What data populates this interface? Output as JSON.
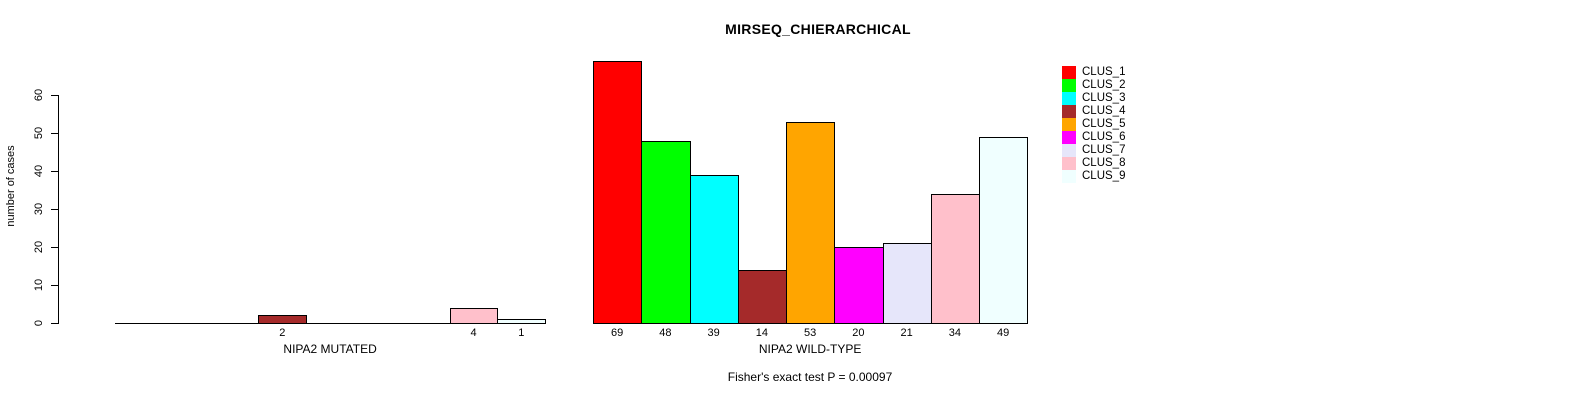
{
  "chart_data": {
    "type": "bar",
    "title": "MIRSEQ_CHIERARCHICAL",
    "ylabel": "number of cases",
    "xlabel": "",
    "yticks": [
      0,
      10,
      20,
      30,
      40,
      50,
      60
    ],
    "ylim": [
      0,
      69
    ],
    "grid": false,
    "series_labels": [
      "CLUS_1",
      "CLUS_2",
      "CLUS_3",
      "CLUS_4",
      "CLUS_5",
      "CLUS_6",
      "CLUS_7",
      "CLUS_8",
      "CLUS_9"
    ],
    "colors": [
      "#FF0000",
      "#00FF00",
      "#00FFFF",
      "#A52A2A",
      "#FFA500",
      "#FF00FF",
      "#E6E6FA",
      "#FFC0CB",
      "#F0FFFF"
    ],
    "groups": [
      {
        "category": "NIPA2 MUTATED",
        "values": [
          0,
          0,
          0,
          2,
          0,
          0,
          0,
          4,
          1
        ]
      },
      {
        "category": "NIPA2 WILD-TYPE",
        "values": [
          69,
          48,
          39,
          14,
          53,
          20,
          21,
          34,
          49
        ]
      }
    ],
    "bar_value_labels": "below bars, zero values unlabeled",
    "legend": {
      "position": "right-outside",
      "items": [
        {
          "label": "CLUS_1",
          "color": "#FF0000"
        },
        {
          "label": "CLUS_2",
          "color": "#00FF00"
        },
        {
          "label": "CLUS_3",
          "color": "#00FFFF"
        },
        {
          "label": "CLUS_4",
          "color": "#A52A2A"
        },
        {
          "label": "CLUS_5",
          "color": "#FFA500"
        },
        {
          "label": "CLUS_6",
          "color": "#FF00FF"
        },
        {
          "label": "CLUS_7",
          "color": "#E6E6FA"
        },
        {
          "label": "CLUS_8",
          "color": "#FFC0CB"
        },
        {
          "label": "CLUS_9",
          "color": "#F0FFFF"
        }
      ]
    },
    "annotation": "Fisher's exact test P = 0.00097"
  }
}
